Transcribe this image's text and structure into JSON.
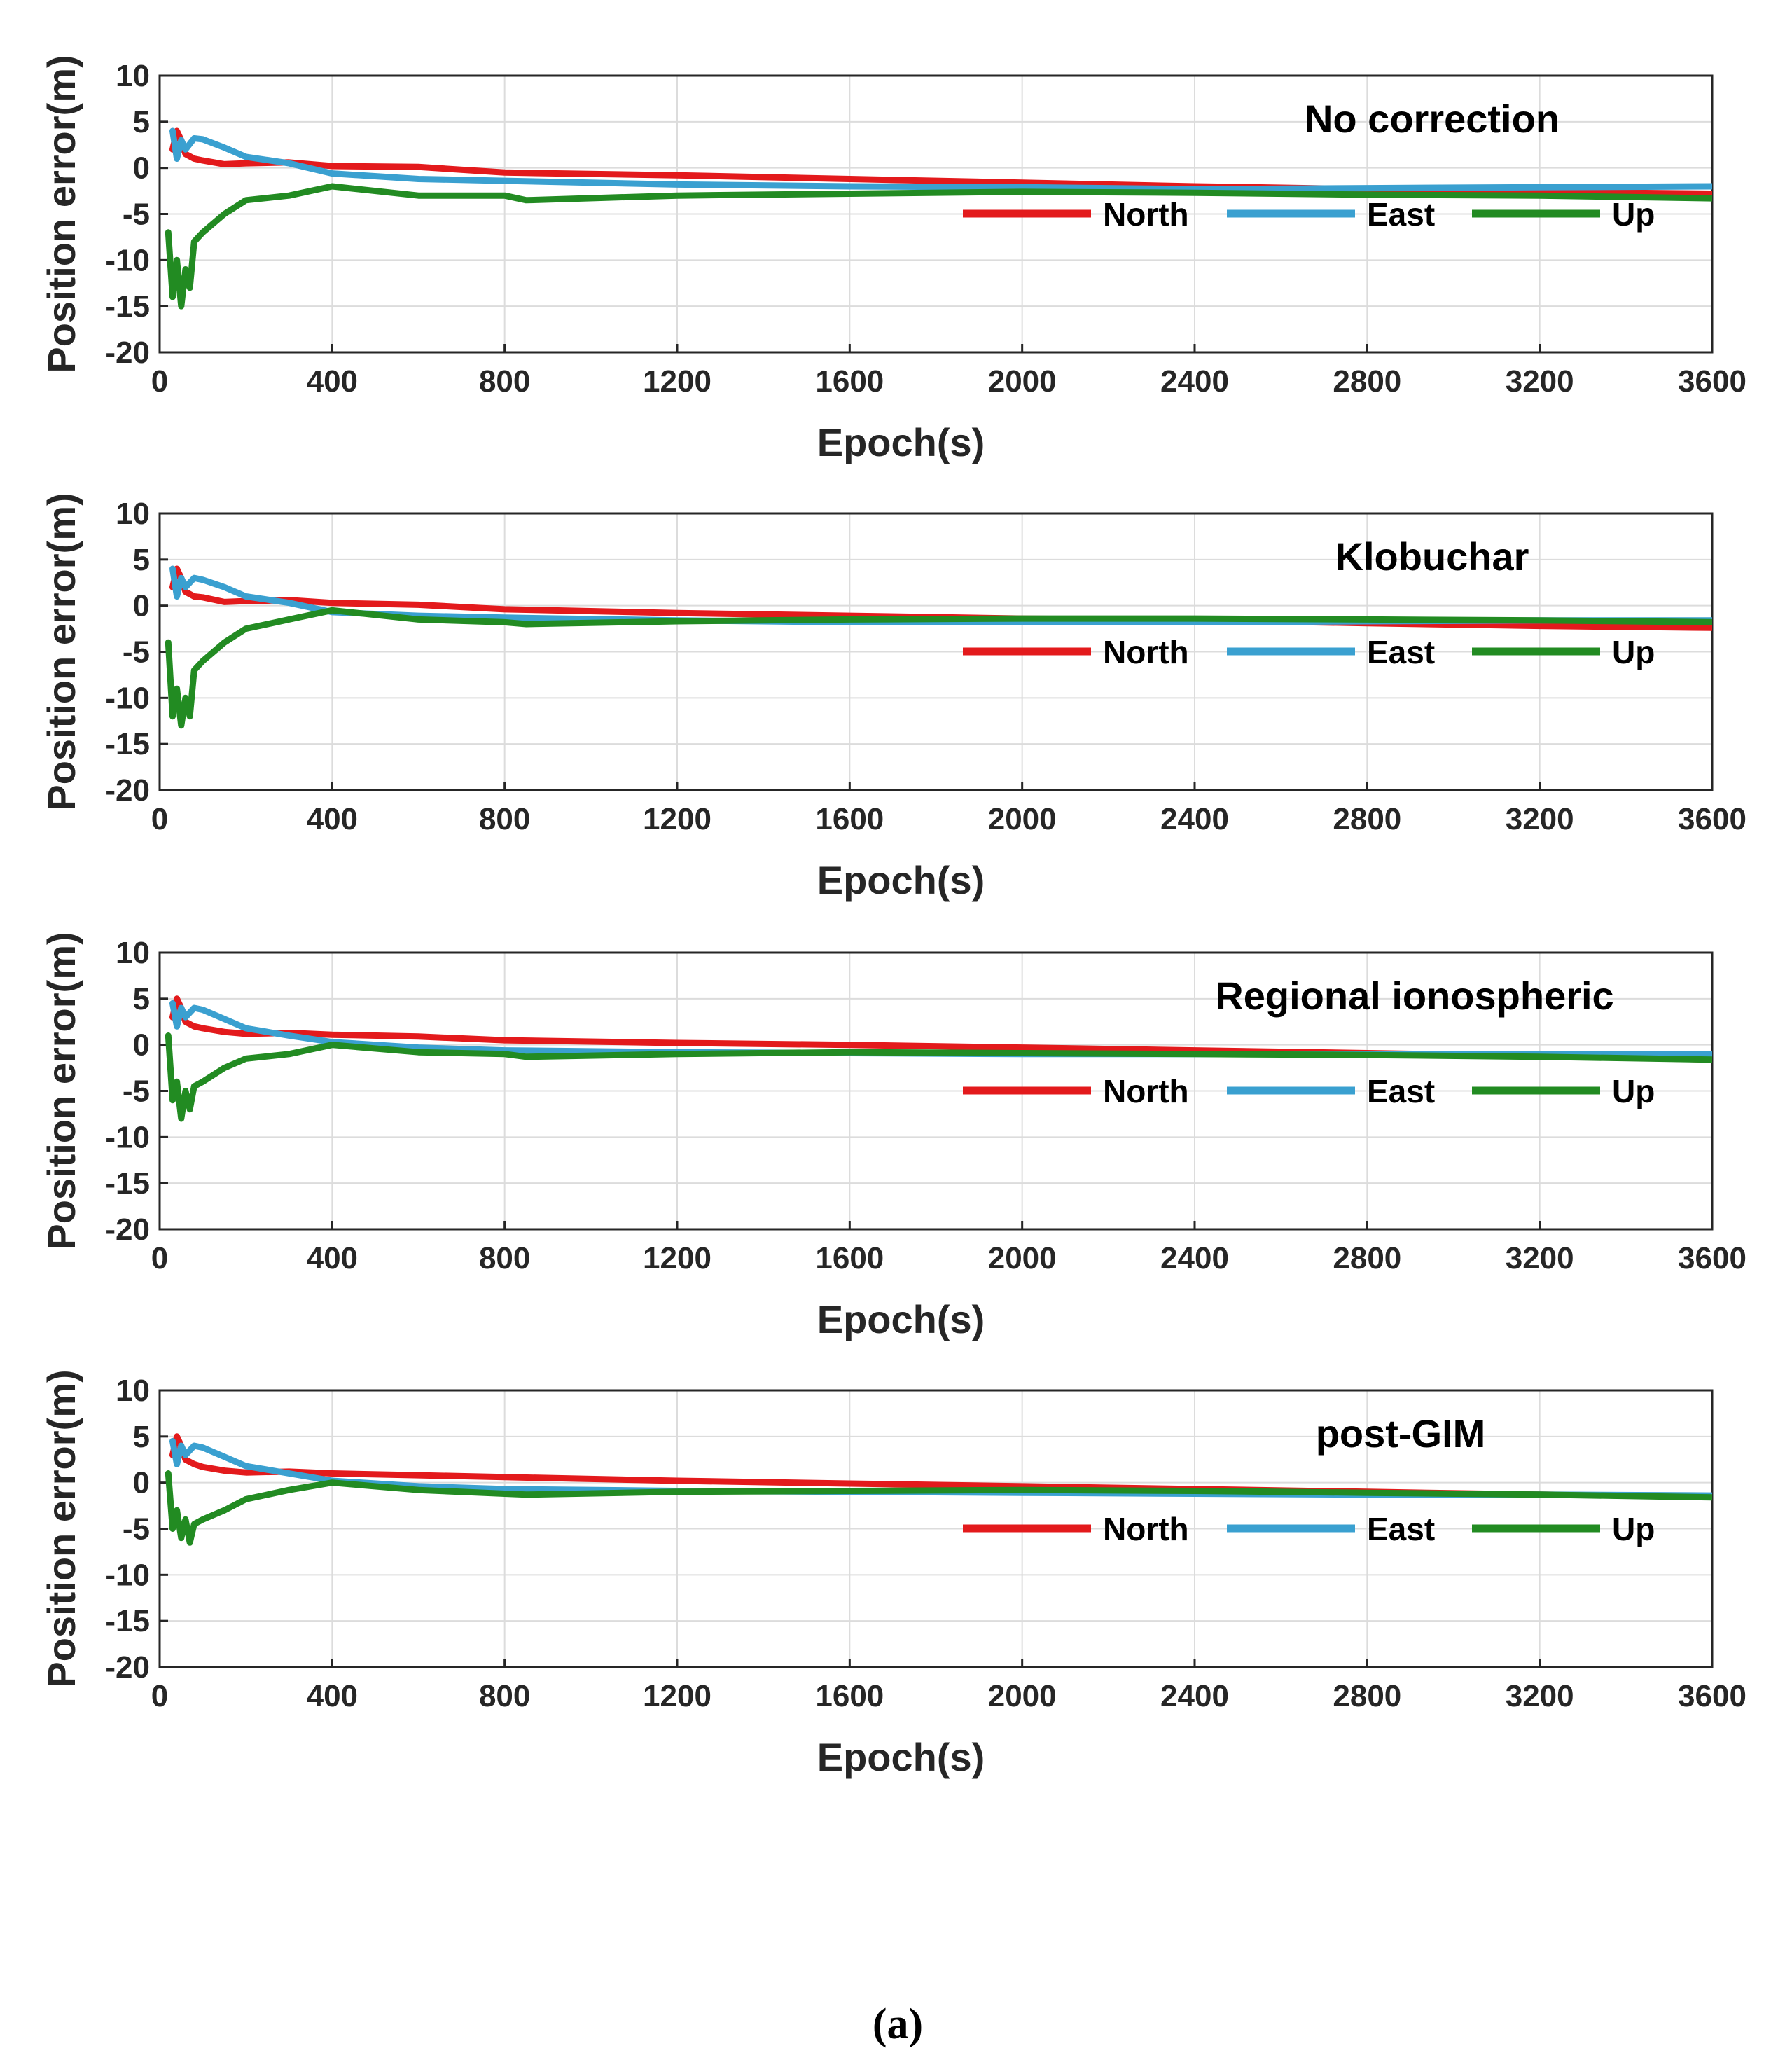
{
  "figure": {
    "caption": "(a)",
    "colors": {
      "North": "#e31a1c",
      "East": "#3aa0d0",
      "Up": "#228b22"
    }
  },
  "chart_data": [
    {
      "type": "line",
      "title": "No correction",
      "xlabel": "Epoch(s)",
      "ylabel": "Position error(m)",
      "xlim": [
        0,
        3600
      ],
      "ylim": [
        -20,
        10
      ],
      "xticks": [
        0,
        400,
        800,
        1200,
        1600,
        2000,
        2400,
        2800,
        3200,
        3600
      ],
      "yticks": [
        10,
        5,
        0,
        -5,
        -10,
        -15,
        -20
      ],
      "grid": true,
      "legend": [
        "North",
        "East",
        "Up"
      ],
      "series": [
        {
          "name": "North",
          "x": [
            30,
            40,
            50,
            60,
            80,
            100,
            150,
            200,
            300,
            400,
            600,
            800,
            1200,
            1600,
            2000,
            2400,
            2800,
            3200,
            3600
          ],
          "y": [
            2,
            4,
            3,
            1.5,
            1,
            0.8,
            0.4,
            0.5,
            0.6,
            0.2,
            0.1,
            -0.5,
            -0.8,
            -1.2,
            -1.6,
            -2.0,
            -2.3,
            -2.6,
            -2.8
          ]
        },
        {
          "name": "East",
          "x": [
            30,
            40,
            50,
            60,
            80,
            100,
            150,
            200,
            300,
            400,
            600,
            800,
            1200,
            1600,
            2000,
            2400,
            2800,
            3200,
            3600
          ],
          "y": [
            4,
            1,
            3,
            2,
            3.2,
            3.1,
            2.2,
            1.2,
            0.5,
            -0.6,
            -1.2,
            -1.4,
            -1.8,
            -2.0,
            -2.1,
            -2.3,
            -2.2,
            -2.1,
            -2.0
          ]
        },
        {
          "name": "Up",
          "x": [
            20,
            30,
            40,
            50,
            60,
            70,
            80,
            100,
            150,
            200,
            300,
            400,
            600,
            800,
            850,
            1200,
            1600,
            2000,
            2400,
            2800,
            3200,
            3600
          ],
          "y": [
            -7,
            -14,
            -10,
            -15,
            -11,
            -13,
            -8,
            -7,
            -5,
            -3.5,
            -3,
            -2,
            -3,
            -3,
            -3.5,
            -3,
            -2.8,
            -2.6,
            -2.7,
            -2.9,
            -3.0,
            -3.3
          ]
        }
      ]
    },
    {
      "type": "line",
      "title": "Klobuchar",
      "xlabel": "Epoch(s)",
      "ylabel": "Position error(m)",
      "xlim": [
        0,
        3600
      ],
      "ylim": [
        -20,
        10
      ],
      "xticks": [
        0,
        400,
        800,
        1200,
        1600,
        2000,
        2400,
        2800,
        3200,
        3600
      ],
      "yticks": [
        10,
        5,
        0,
        -5,
        -10,
        -15,
        -20
      ],
      "grid": true,
      "legend": [
        "North",
        "East",
        "Up"
      ],
      "series": [
        {
          "name": "North",
          "x": [
            30,
            40,
            50,
            60,
            80,
            100,
            150,
            200,
            300,
            400,
            600,
            800,
            1200,
            1600,
            2000,
            2400,
            2800,
            3200,
            3600
          ],
          "y": [
            2,
            4,
            3,
            1.5,
            1,
            0.9,
            0.4,
            0.5,
            0.6,
            0.3,
            0.1,
            -0.4,
            -0.8,
            -1.1,
            -1.4,
            -1.6,
            -1.9,
            -2.2,
            -2.4
          ]
        },
        {
          "name": "East",
          "x": [
            30,
            40,
            50,
            60,
            80,
            100,
            150,
            200,
            300,
            400,
            600,
            800,
            1200,
            1600,
            2000,
            2400,
            2800,
            3200,
            3600
          ],
          "y": [
            4,
            1,
            3,
            2,
            3.0,
            2.8,
            2.0,
            1.0,
            0.3,
            -0.7,
            -1.1,
            -1.3,
            -1.6,
            -1.8,
            -1.8,
            -1.8,
            -1.7,
            -1.6,
            -1.6
          ]
        },
        {
          "name": "Up",
          "x": [
            20,
            30,
            40,
            50,
            60,
            70,
            80,
            100,
            150,
            200,
            300,
            400,
            600,
            800,
            850,
            1200,
            1600,
            2000,
            2400,
            2800,
            3200,
            3600
          ],
          "y": [
            -4,
            -12,
            -9,
            -13,
            -10,
            -12,
            -7,
            -6,
            -4,
            -2.5,
            -1.5,
            -0.5,
            -1.5,
            -1.8,
            -2.0,
            -1.7,
            -1.5,
            -1.4,
            -1.4,
            -1.5,
            -1.6,
            -1.8
          ]
        }
      ]
    },
    {
      "type": "line",
      "title": "Regional ionospheric",
      "xlabel": "Epoch(s)",
      "ylabel": "Position error(m)",
      "xlim": [
        0,
        3600
      ],
      "ylim": [
        -20,
        10
      ],
      "xticks": [
        0,
        400,
        800,
        1200,
        1600,
        2000,
        2400,
        2800,
        3200,
        3600
      ],
      "yticks": [
        10,
        5,
        0,
        -5,
        -10,
        -15,
        -20
      ],
      "grid": true,
      "legend": [
        "North",
        "East",
        "Up"
      ],
      "series": [
        {
          "name": "North",
          "x": [
            30,
            40,
            50,
            60,
            80,
            100,
            150,
            200,
            300,
            400,
            600,
            800,
            1200,
            1600,
            2000,
            2400,
            2800,
            3200,
            3600
          ],
          "y": [
            3,
            5,
            4,
            2.5,
            2,
            1.8,
            1.4,
            1.2,
            1.3,
            1.1,
            0.9,
            0.5,
            0.2,
            0.0,
            -0.3,
            -0.6,
            -0.9,
            -1.2,
            -1.6
          ]
        },
        {
          "name": "East",
          "x": [
            30,
            40,
            50,
            60,
            80,
            100,
            150,
            200,
            300,
            400,
            600,
            800,
            1200,
            1600,
            2000,
            2400,
            2800,
            3200,
            3600
          ],
          "y": [
            4.5,
            2,
            4,
            3,
            4.0,
            3.8,
            2.8,
            1.8,
            1.0,
            0.3,
            -0.3,
            -0.6,
            -0.8,
            -0.9,
            -1.0,
            -1.0,
            -1.0,
            -1.0,
            -1.0
          ]
        },
        {
          "name": "Up",
          "x": [
            20,
            30,
            40,
            50,
            60,
            70,
            80,
            100,
            150,
            200,
            300,
            400,
            600,
            800,
            850,
            1200,
            1600,
            2000,
            2400,
            2800,
            3200,
            3600
          ],
          "y": [
            1,
            -6,
            -4,
            -8,
            -5,
            -7,
            -4.5,
            -4,
            -2.5,
            -1.5,
            -1,
            0,
            -0.8,
            -1,
            -1.3,
            -1,
            -0.8,
            -0.9,
            -1.0,
            -1.1,
            -1.3,
            -1.6
          ]
        }
      ]
    },
    {
      "type": "line",
      "title": "post-GIM",
      "xlabel": "Epoch(s)",
      "ylabel": "Position error(m)",
      "xlim": [
        0,
        3600
      ],
      "ylim": [
        -20,
        10
      ],
      "xticks": [
        0,
        400,
        800,
        1200,
        1600,
        2000,
        2400,
        2800,
        3200,
        3600
      ],
      "yticks": [
        10,
        5,
        0,
        -5,
        -10,
        -15,
        -20
      ],
      "grid": true,
      "legend": [
        "North",
        "East",
        "Up"
      ],
      "series": [
        {
          "name": "North",
          "x": [
            30,
            40,
            50,
            60,
            80,
            100,
            150,
            200,
            300,
            400,
            600,
            800,
            1200,
            1600,
            2000,
            2400,
            2800,
            3200,
            3600
          ],
          "y": [
            3,
            5,
            4,
            2.5,
            2,
            1.7,
            1.3,
            1.1,
            1.2,
            1.0,
            0.8,
            0.6,
            0.2,
            -0.1,
            -0.4,
            -0.7,
            -1.0,
            -1.3,
            -1.5
          ]
        },
        {
          "name": "East",
          "x": [
            30,
            40,
            50,
            60,
            80,
            100,
            150,
            200,
            300,
            400,
            600,
            800,
            1200,
            1600,
            2000,
            2400,
            2800,
            3200,
            3600
          ],
          "y": [
            4.5,
            2,
            4,
            3,
            4.0,
            3.8,
            2.8,
            1.8,
            1.0,
            0.2,
            -0.4,
            -0.7,
            -0.9,
            -1.0,
            -1.1,
            -1.2,
            -1.3,
            -1.3,
            -1.4
          ]
        },
        {
          "name": "Up",
          "x": [
            20,
            30,
            40,
            50,
            60,
            70,
            80,
            100,
            150,
            200,
            300,
            400,
            600,
            800,
            850,
            1200,
            1600,
            2000,
            2400,
            2800,
            3200,
            3600
          ],
          "y": [
            1,
            -5,
            -3,
            -6,
            -4,
            -6.5,
            -4.5,
            -4,
            -3,
            -1.8,
            -0.8,
            0,
            -0.8,
            -1.2,
            -1.3,
            -1.0,
            -0.9,
            -0.8,
            -0.9,
            -1.1,
            -1.3,
            -1.6
          ]
        }
      ]
    }
  ]
}
